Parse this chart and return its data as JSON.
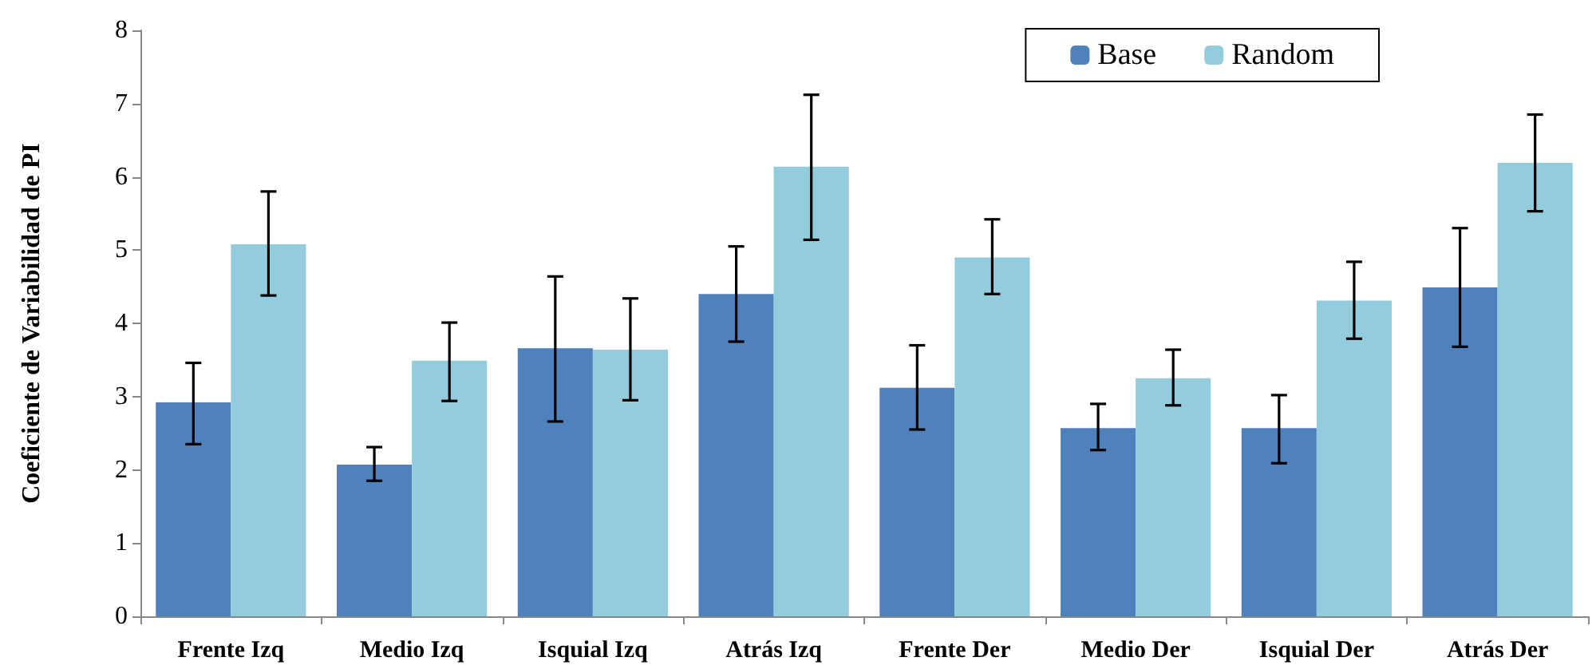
{
  "chart_data": {
    "type": "bar",
    "ylabel": "Coeficiente de Variabilidad de PI",
    "categories": [
      "Frente Izq",
      "Medio Izq",
      "Isquial Izq",
      "Atrás Izq",
      "Frente Der",
      "Medio Der",
      "Isquial Der",
      "Atrás Der"
    ],
    "series": [
      {
        "name": "Base",
        "color": "#4f81bd",
        "values": [
          2.92,
          2.07,
          3.66,
          4.4,
          3.12,
          2.57,
          2.57,
          4.49
        ],
        "errors": [
          [
            2.35,
            3.46
          ],
          [
            1.85,
            2.31
          ],
          [
            2.66,
            4.64
          ],
          [
            3.75,
            5.05
          ],
          [
            2.55,
            3.7
          ],
          [
            2.27,
            2.9
          ],
          [
            2.09,
            3.02
          ],
          [
            3.68,
            5.3
          ]
        ]
      },
      {
        "name": "Random",
        "color": "#93cddd",
        "values": [
          5.08,
          3.49,
          3.64,
          6.14,
          4.9,
          3.25,
          4.31,
          6.19
        ],
        "errors": [
          [
            4.38,
            5.8
          ],
          [
            2.94,
            4.01
          ],
          [
            2.95,
            4.34
          ],
          [
            5.14,
            7.12
          ],
          [
            4.4,
            5.42
          ],
          [
            2.88,
            3.64
          ],
          [
            3.79,
            4.84
          ],
          [
            5.53,
            6.85
          ]
        ]
      }
    ],
    "ylim": [
      0,
      8
    ],
    "yticks": [
      0,
      1,
      2,
      3,
      4,
      5,
      6,
      7,
      8
    ],
    "grid": false,
    "legend": "top right"
  }
}
